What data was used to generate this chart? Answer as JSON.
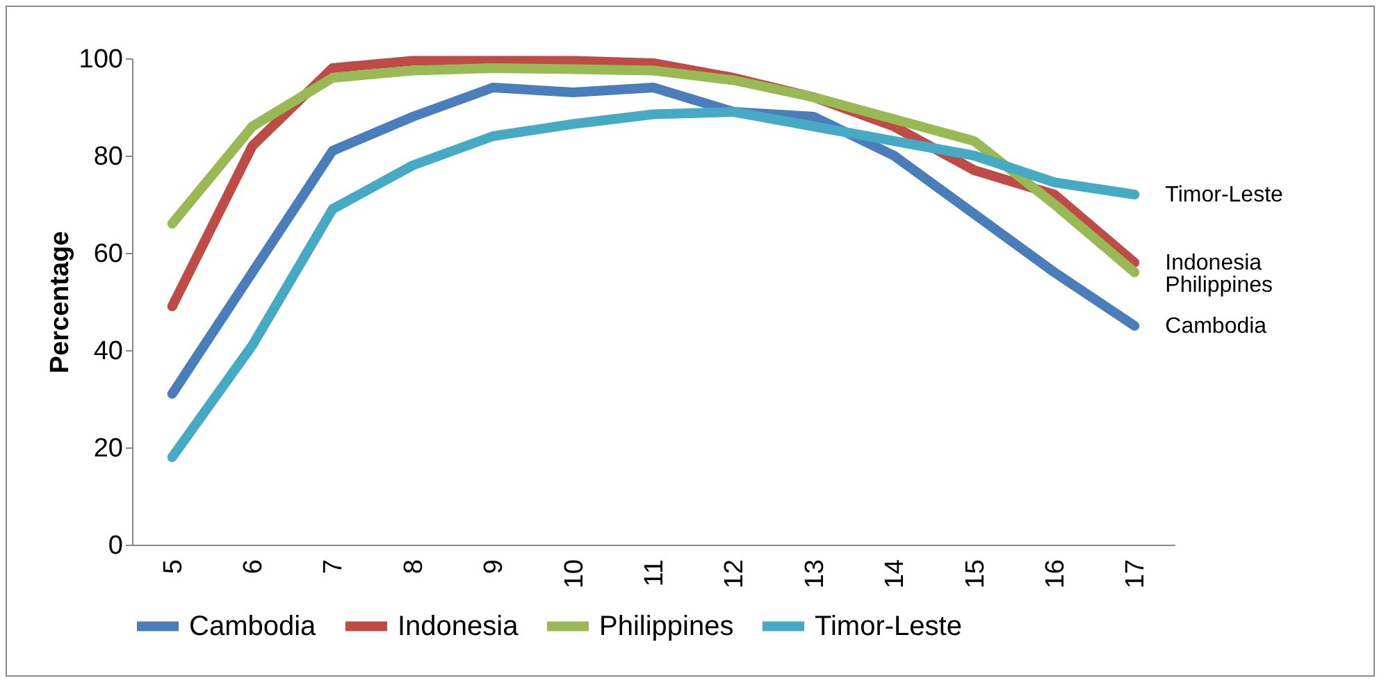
{
  "chart_data": {
    "type": "line",
    "ylabel": "Percentage",
    "categories": [
      "5",
      "6",
      "7",
      "8",
      "9",
      "10",
      "11",
      "12",
      "13",
      "14",
      "15",
      "16",
      "17"
    ],
    "ylim": [
      0,
      100
    ],
    "yticks": [
      0,
      20,
      40,
      60,
      80,
      100
    ],
    "grid": false,
    "legend": "bottom",
    "marker": "none",
    "line_style": "solid",
    "series": [
      {
        "name": "Cambodia",
        "color": "#4a7ebb",
        "values": [
          31,
          56,
          81,
          88,
          94,
          93,
          94,
          89,
          88,
          80,
          68,
          56,
          45
        ]
      },
      {
        "name": "Indonesia",
        "color": "#be4b48",
        "values": [
          49,
          82,
          98,
          99.5,
          99.5,
          99.5,
          99,
          96,
          92,
          86,
          77,
          72,
          58
        ]
      },
      {
        "name": "Philippines",
        "color": "#98b954",
        "values": [
          66,
          86,
          96,
          97.5,
          98,
          97.8,
          97.5,
          95.5,
          92,
          87.5,
          83,
          70,
          56
        ]
      },
      {
        "name": "Timor-Leste",
        "color": "#46aac5",
        "values": [
          18,
          41,
          69,
          78,
          84,
          86.5,
          88.5,
          89,
          86,
          83,
          80,
          74.5,
          72
        ]
      }
    ]
  }
}
